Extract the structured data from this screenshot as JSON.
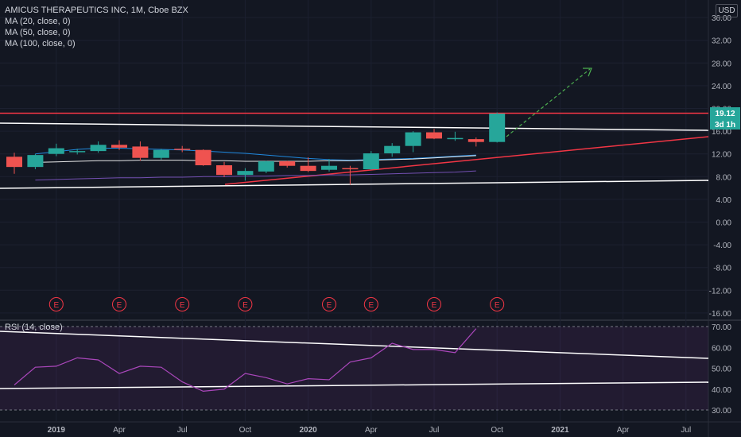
{
  "header": {
    "title": "AMICUS THERAPEUTICS INC, 1M, Cboe BZX",
    "indicators": [
      "MA (20, close, 0)",
      "MA (50, close, 0)",
      "MA (100, close, 0)"
    ],
    "currency": "USD"
  },
  "price_badges": {
    "last_price": "19.12",
    "countdown": "3d 1h"
  },
  "rsi_pane": {
    "label": "RSI (14, close)"
  },
  "events": [
    "E",
    "E",
    "E",
    "E",
    "E",
    "E",
    "E",
    "E"
  ],
  "colors": {
    "up": "#26a69a",
    "down": "#ef5350",
    "background": "#131722",
    "resistance": "#f23645",
    "arrow": "#4caf50",
    "rsi": "#ab47bc"
  },
  "chart_data": [
    {
      "type": "candlestick",
      "y_axis_ticks": [
        "36.00",
        "32.00",
        "28.00",
        "24.00",
        "20.00",
        "16.00",
        "12.00",
        "8.00",
        "4.00",
        "0.00",
        "-4.00",
        "-8.00",
        "-12.00",
        "-16.00"
      ],
      "ylim": [
        -16,
        36
      ],
      "x_axis_labels": [
        "2019",
        "Apr",
        "Jul",
        "Oct",
        "2020",
        "Apr",
        "Jul",
        "Oct",
        "2021",
        "Apr",
        "Jul"
      ],
      "months": [
        "2018-11",
        "2018-12",
        "2019-01",
        "2019-02",
        "2019-03",
        "2019-04",
        "2019-05",
        "2019-06",
        "2019-07",
        "2019-08",
        "2019-09",
        "2019-10",
        "2019-11",
        "2019-12",
        "2020-01",
        "2020-02",
        "2020-03",
        "2020-04",
        "2020-05",
        "2020-06",
        "2020-07",
        "2020-08",
        "2020-09",
        "2020-10"
      ],
      "candles": [
        {
          "o": 11.5,
          "h": 12.2,
          "l": 8.5,
          "c": 9.7
        },
        {
          "o": 9.7,
          "h": 12.0,
          "l": 9.3,
          "c": 11.8
        },
        {
          "o": 12.0,
          "h": 13.8,
          "l": 11.6,
          "c": 13.0
        },
        {
          "o": 12.5,
          "h": 12.9,
          "l": 11.9,
          "c": 12.5
        },
        {
          "o": 12.5,
          "h": 14.2,
          "l": 12.2,
          "c": 13.6
        },
        {
          "o": 13.6,
          "h": 14.4,
          "l": 12.7,
          "c": 13.1
        },
        {
          "o": 13.3,
          "h": 14.2,
          "l": 10.8,
          "c": 11.3
        },
        {
          "o": 11.3,
          "h": 12.9,
          "l": 11.0,
          "c": 12.7
        },
        {
          "o": 12.9,
          "h": 13.4,
          "l": 12.3,
          "c": 12.7
        },
        {
          "o": 12.7,
          "h": 12.8,
          "l": 9.9,
          "c": 10.0
        },
        {
          "o": 10.0,
          "h": 10.6,
          "l": 7.9,
          "c": 8.3
        },
        {
          "o": 8.3,
          "h": 9.5,
          "l": 7.3,
          "c": 9.0
        },
        {
          "o": 8.9,
          "h": 10.8,
          "l": 8.6,
          "c": 10.7
        },
        {
          "o": 10.7,
          "h": 10.8,
          "l": 9.6,
          "c": 9.9
        },
        {
          "o": 9.9,
          "h": 11.4,
          "l": 8.8,
          "c": 9.0
        },
        {
          "o": 9.2,
          "h": 11.1,
          "l": 8.9,
          "c": 9.9
        },
        {
          "o": 9.5,
          "h": 9.9,
          "l": 6.6,
          "c": 9.3
        },
        {
          "o": 9.3,
          "h": 12.5,
          "l": 9.2,
          "c": 12.1
        },
        {
          "o": 12.1,
          "h": 13.9,
          "l": 11.5,
          "c": 13.4
        },
        {
          "o": 13.4,
          "h": 16.0,
          "l": 12.3,
          "c": 15.8
        },
        {
          "o": 15.8,
          "h": 16.4,
          "l": 14.6,
          "c": 14.7
        },
        {
          "o": 14.7,
          "h": 15.9,
          "l": 14.3,
          "c": 14.8
        },
        {
          "o": 14.6,
          "h": 14.9,
          "l": 13.3,
          "c": 14.1
        },
        {
          "o": 14.1,
          "h": 19.3,
          "l": 14.0,
          "c": 19.1
        }
      ],
      "moving_averages": [
        {
          "name": "MA (20, close, 0)",
          "color": "#2196f3",
          "values": [
            12.0,
            12.4,
            12.8,
            13.0,
            13.0,
            12.9,
            12.8,
            12.7,
            12.5,
            12.3,
            12.1,
            11.8,
            11.5,
            11.2,
            11.0,
            10.9,
            11.0,
            11.1,
            11.2,
            11.4,
            11.6,
            11.8
          ]
        },
        {
          "name": "MA (50, close, 0)",
          "color": "#ffffff",
          "values": [
            10.5,
            10.6,
            10.7,
            10.8,
            10.8,
            10.9,
            10.9,
            10.9,
            10.8,
            10.8,
            10.7,
            10.7,
            10.7,
            10.7,
            10.8,
            10.8,
            10.9,
            11.0,
            11.1,
            11.3,
            11.5,
            11.7
          ]
        },
        {
          "name": "MA (100, close, 0)",
          "color": "#7e57c2",
          "values": [
            7.4,
            7.5,
            7.6,
            7.7,
            7.8,
            7.8,
            7.9,
            7.9,
            8.0,
            8.0,
            8.1,
            8.1,
            8.2,
            8.2,
            8.3,
            8.3,
            8.4,
            8.5,
            8.6,
            8.7,
            8.8,
            9.0
          ]
        }
      ]
    },
    {
      "type": "line",
      "y_axis_ticks": [
        "70.00",
        "60.00",
        "50.00",
        "40.00",
        "30.00"
      ],
      "ylim": [
        26,
        74
      ],
      "band": [
        30,
        70
      ],
      "values": [
        42,
        50.5,
        51,
        55,
        54,
        47.5,
        51,
        50.5,
        43.5,
        39,
        40,
        47.5,
        45.5,
        42.5,
        45,
        44.5,
        53,
        55,
        62,
        59,
        59,
        57.5,
        69
      ]
    }
  ]
}
